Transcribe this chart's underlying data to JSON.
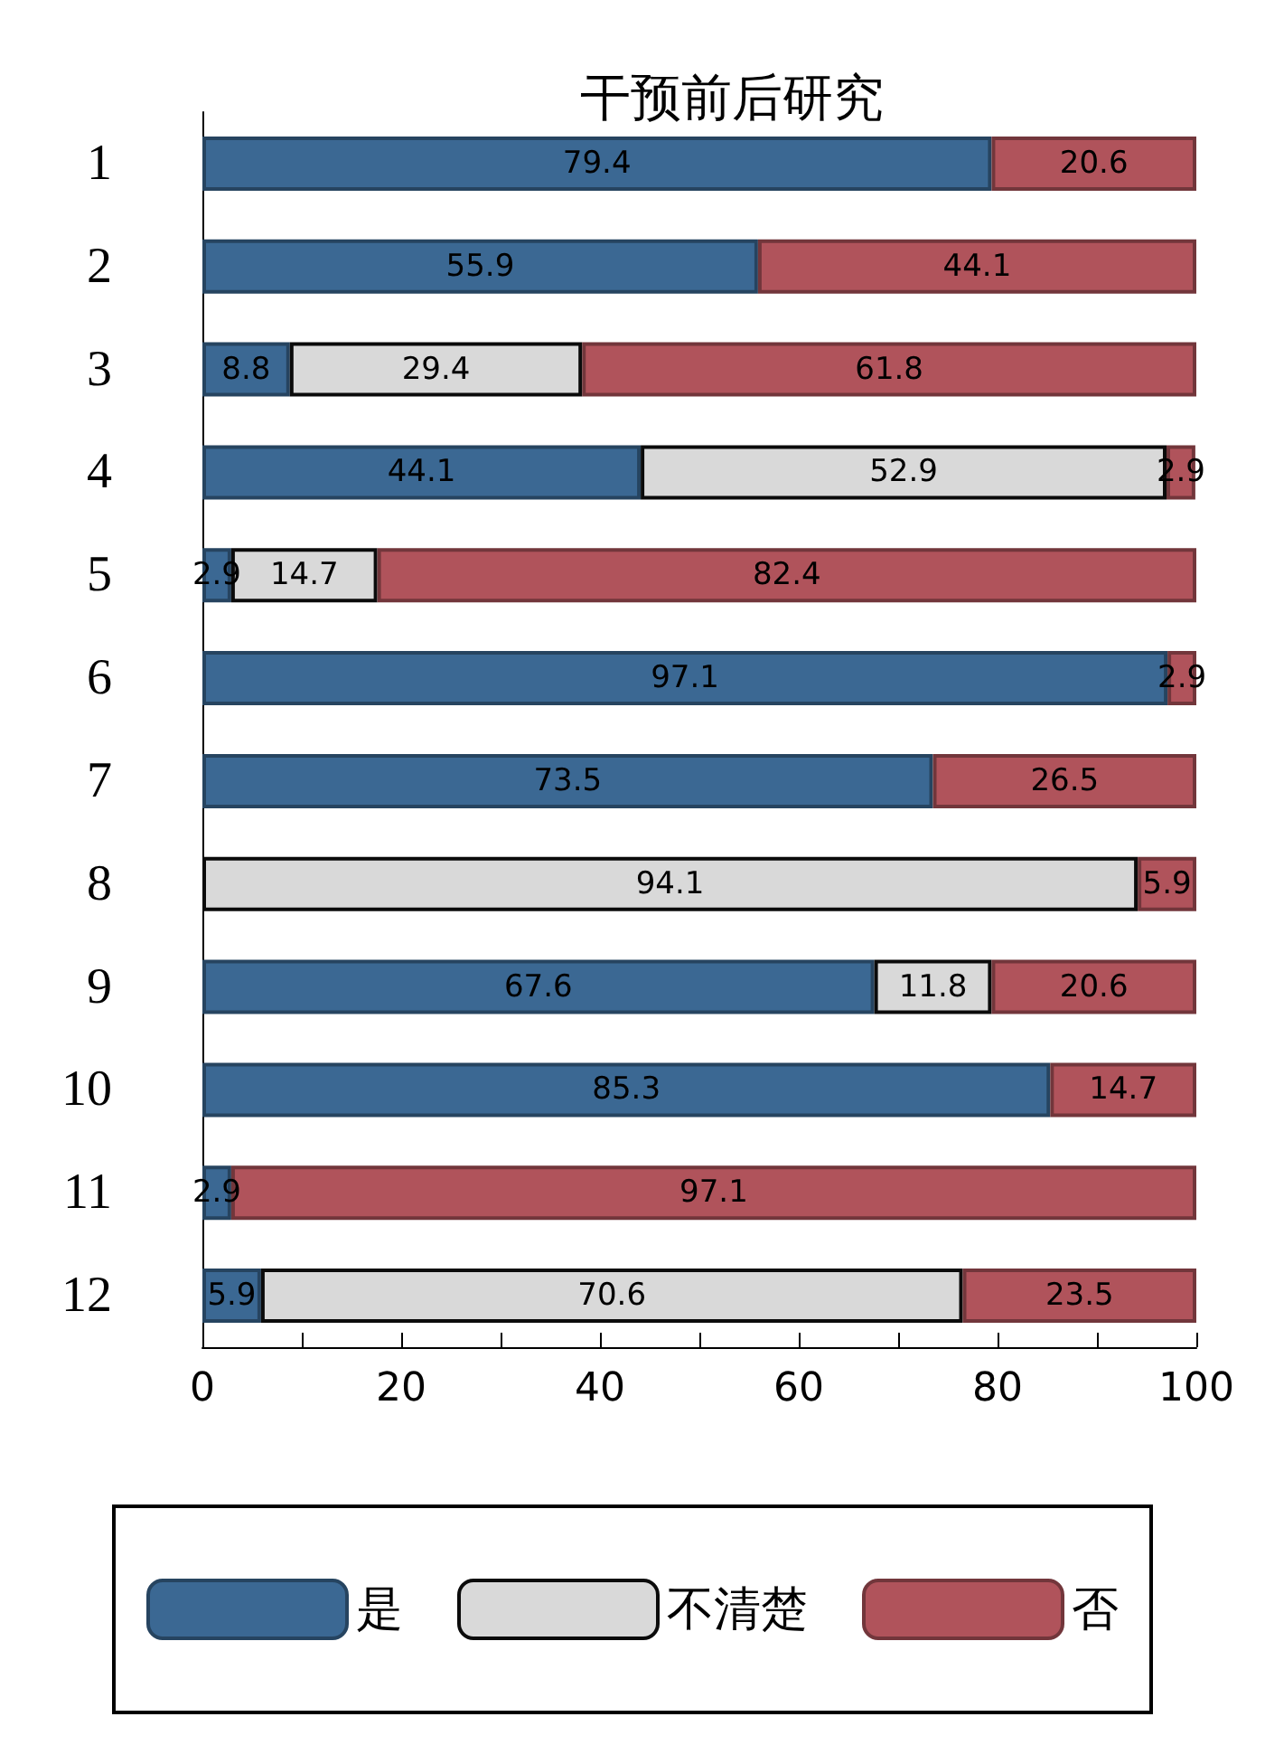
{
  "chart_data": {
    "type": "bar",
    "orientation": "horizontal",
    "stacked": true,
    "title": "干预前后研究",
    "categories": [
      "1",
      "2",
      "3",
      "4",
      "5",
      "6",
      "7",
      "8",
      "9",
      "10",
      "11",
      "12"
    ],
    "series": [
      {
        "name": "是",
        "color": "#3b6893",
        "values": [
          79.4,
          55.9,
          8.8,
          44.1,
          2.9,
          97.1,
          73.5,
          null,
          67.6,
          85.3,
          2.9,
          5.9
        ]
      },
      {
        "name": "不清楚",
        "color": "#d9d9d9",
        "values": [
          null,
          null,
          29.4,
          52.9,
          14.7,
          null,
          null,
          94.1,
          11.8,
          null,
          null,
          70.6
        ]
      },
      {
        "name": "否",
        "color": "#b0535b",
        "values": [
          20.6,
          44.1,
          61.8,
          2.9,
          82.4,
          2.9,
          26.5,
          5.9,
          20.6,
          14.7,
          97.1,
          23.5
        ]
      }
    ],
    "xlim": [
      0,
      100
    ],
    "xticks": [
      0,
      {
        "value": 10,
        "label": null
      },
      20,
      {
        "value": 30,
        "label": null
      },
      40,
      {
        "value": 50,
        "label": null
      },
      60,
      {
        "value": 70,
        "label": null
      },
      80,
      {
        "value": 90,
        "label": null
      },
      100
    ],
    "data_labels": true,
    "grid": false,
    "legend": "bottom"
  }
}
